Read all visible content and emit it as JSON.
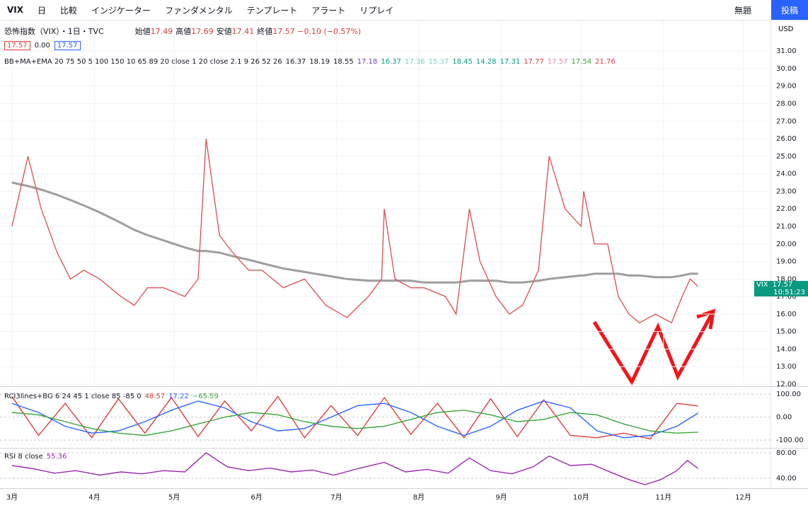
{
  "toolbar": {
    "symbol": "VIX",
    "interval": "日",
    "items": [
      "比較",
      "インジケーター",
      "ファンダメンタル",
      "テンプレート",
      "アラート",
      "リプレイ"
    ],
    "layout": "無題",
    "publish": "投稿",
    "currency": "USD"
  },
  "header": {
    "name": "恐怖指数（VIX）・1日・TVC",
    "ohlc": [
      {
        "label": "始値",
        "value": "17.49"
      },
      {
        "label": "高値",
        "value": "17.69"
      },
      {
        "label": "安値",
        "value": "17.41"
      },
      {
        "label": "終値",
        "value": "17.57"
      }
    ],
    "change": "−0.10 (−0.57%)",
    "boxes": [
      "17.57",
      "0.00",
      "17.57"
    ],
    "price_tag": [
      "VIX",
      "17.57",
      "10:51:23"
    ]
  },
  "legends": [
    {
      "title": "BB+MA+EMA 20 75 50 5 100 150 10 65 89 20 close 1 20 close 2.1 9 26 52 26",
      "values": [
        {
          "text": "16.37",
          "color": "#131722"
        },
        {
          "text": "18.19",
          "color": "#131722"
        },
        {
          "text": "18.55",
          "color": "#131722"
        },
        {
          "text": "17.18",
          "color": "#7b3fb5"
        },
        {
          "text": "16.37",
          "color": "#089981"
        },
        {
          "text": "17.36",
          "color": "#7fcfc4"
        },
        {
          "text": "15.37",
          "color": "#7fcfc4"
        },
        {
          "text": "18.45",
          "color": "#089981"
        },
        {
          "text": "14.28",
          "color": "#089981"
        },
        {
          "text": "17.31",
          "color": "#089981"
        },
        {
          "text": "17.77",
          "color": "#e03c3c"
        },
        {
          "text": "17.57",
          "color": "#f08aa8"
        },
        {
          "text": "17.54",
          "color": "#3aa53a"
        },
        {
          "text": "21.76",
          "color": "#e03c3c"
        }
      ]
    },
    {
      "title": "RCI3lines+BG 6 24 45 1 close 85 -85 0",
      "values": [
        {
          "text": "48.57",
          "color": "#e03c3c"
        },
        {
          "text": "17.22",
          "color": "#2962ff"
        },
        {
          "text": "−65.59",
          "color": "#3aa53a"
        }
      ]
    },
    {
      "title": "RSI 8 close",
      "values": [
        {
          "text": "55.36",
          "color": "#9c27b0"
        }
      ]
    }
  ],
  "chart_data": [
    {
      "type": "line",
      "x": [
        0,
        6,
        11,
        17,
        22,
        27,
        33,
        41,
        46,
        51,
        57,
        65,
        70,
        73,
        78,
        83,
        89,
        94,
        102,
        110,
        118,
        126,
        134,
        139,
        140,
        144,
        150,
        155,
        163,
        167,
        172,
        176,
        182,
        187,
        192,
        198,
        202,
        208,
        214,
        215,
        219,
        224,
        228,
        232,
        236,
        242,
        248,
        252,
        255,
        258
      ],
      "series": [
        {
          "color": "#9e9e9e",
          "values": [
            23.5,
            23.3,
            23.1,
            22.8,
            22.5,
            22.2,
            21.8,
            21.2,
            20.8,
            20.5,
            20.2,
            19.8,
            19.6,
            19.6,
            19.5,
            19.3,
            19.1,
            18.9,
            18.6,
            18.4,
            18.2,
            18.0,
            17.9,
            17.9,
            17.9,
            17.9,
            17.9,
            17.8,
            17.8,
            17.8,
            17.9,
            17.9,
            17.9,
            17.8,
            17.8,
            17.9,
            18.0,
            18.1,
            18.2,
            18.2,
            18.3,
            18.3,
            18.3,
            18.2,
            18.2,
            18.1,
            18.1,
            18.2,
            18.3,
            18.3
          ]
        },
        {
          "color": "#e0565b",
          "values": [
            21,
            25,
            22,
            19.5,
            18,
            18.5,
            18,
            17,
            16.5,
            17.5,
            17.5,
            17,
            18,
            26,
            20.5,
            19.5,
            18.5,
            18.5,
            17.5,
            18,
            16.5,
            15.8,
            17,
            18,
            22,
            18,
            17.5,
            17.5,
            17,
            16,
            22,
            19,
            17,
            16,
            16.5,
            18.5,
            25,
            22,
            21,
            23,
            20,
            20,
            17,
            16,
            15.5,
            16,
            15.5,
            17,
            18,
            17.57
          ]
        }
      ],
      "xlim": [
        -4.5,
        285.5
      ],
      "xticks": [
        {
          "value": 0,
          "label": "3月"
        },
        {
          "value": 31,
          "label": "4月"
        },
        {
          "value": 61,
          "label": "5月"
        },
        {
          "value": 92,
          "label": "6月"
        },
        {
          "value": 122,
          "label": "7月"
        },
        {
          "value": 153,
          "label": "8月"
        },
        {
          "value": 184,
          "label": "9月"
        },
        {
          "value": 214,
          "label": "10月"
        },
        {
          "value": 245,
          "label": "11月"
        },
        {
          "value": 275,
          "label": "12月"
        }
      ],
      "ylim": [
        11.88,
        32.74
      ],
      "yticks": [
        {
          "value": 12,
          "label": "12.00"
        },
        {
          "value": 13,
          "label": "13.00"
        },
        {
          "value": 14,
          "label": "14.00"
        },
        {
          "value": 15,
          "label": "15.00"
        },
        {
          "value": 16,
          "label": "16.00"
        },
        {
          "value": 17,
          "label": "17.00"
        },
        {
          "value": 18,
          "label": "18.00"
        },
        {
          "value": 19,
          "label": "19.00"
        },
        {
          "value": 20,
          "label": "20.00"
        },
        {
          "value": 21,
          "label": "21.00"
        },
        {
          "value": 22,
          "label": "22.00"
        },
        {
          "value": 23,
          "label": "23.00"
        },
        {
          "value": 24,
          "label": "24.00"
        },
        {
          "value": 25,
          "label": "25.00"
        },
        {
          "value": 26,
          "label": "26.00"
        },
        {
          "value": 27,
          "label": "27.00"
        },
        {
          "value": 28,
          "label": "28.00"
        },
        {
          "value": 29,
          "label": "29.00"
        },
        {
          "value": 30,
          "label": "30.00"
        },
        {
          "value": 31,
          "label": "31.00"
        }
      ],
      "grid": true
    },
    {
      "type": "line",
      "x": [
        0,
        10,
        20,
        30,
        40,
        50,
        60,
        70,
        80,
        90,
        100,
        110,
        120,
        130,
        140,
        150,
        160,
        170,
        180,
        190,
        200,
        210,
        220,
        230,
        240,
        250,
        258
      ],
      "series": [
        {
          "color": "#e03c3c",
          "values": [
            90,
            -80,
            60,
            -90,
            80,
            -70,
            85,
            -85,
            70,
            -60,
            90,
            -90,
            50,
            -80,
            85,
            -75,
            60,
            -90,
            80,
            -85,
            75,
            -80,
            -90,
            -70,
            -95,
            60,
            48.57
          ]
        },
        {
          "color": "#2962ff",
          "values": [
            60,
            20,
            -40,
            -70,
            -60,
            -20,
            30,
            70,
            40,
            -20,
            -60,
            -50,
            0,
            50,
            60,
            20,
            -40,
            -80,
            -40,
            30,
            70,
            40,
            -60,
            -90,
            -80,
            -40,
            17.22
          ]
        },
        {
          "color": "#3aa53a",
          "values": [
            20,
            10,
            -20,
            -50,
            -70,
            -80,
            -60,
            -30,
            0,
            20,
            10,
            -20,
            -40,
            -50,
            -40,
            -10,
            20,
            30,
            10,
            -20,
            -10,
            20,
            10,
            -30,
            -60,
            -70,
            -65.59
          ]
        }
      ],
      "ylim": [
        -131,
        128
      ],
      "yticks": [
        {
          "value": 100,
          "label": "100.00"
        },
        {
          "value": 0,
          "label": "0.00"
        },
        {
          "value": -100,
          "label": "-100.00"
        }
      ],
      "grid": true
    },
    {
      "type": "line",
      "x": [
        0,
        8,
        16,
        24,
        33,
        41,
        49,
        57,
        65,
        73,
        81,
        89,
        97,
        105,
        113,
        121,
        130,
        140,
        148,
        156,
        164,
        172,
        180,
        188,
        196,
        202,
        210,
        218,
        226,
        232,
        238,
        244,
        250,
        254,
        258
      ],
      "series": [
        {
          "color": "#9c27b0",
          "values": [
            60,
            55,
            48,
            52,
            45,
            50,
            47,
            52,
            50,
            80,
            58,
            52,
            56,
            50,
            53,
            45,
            55,
            65,
            50,
            54,
            48,
            72,
            52,
            47,
            58,
            75,
            60,
            62,
            48,
            38,
            30,
            38,
            52,
            68,
            55.36
          ]
        }
      ],
      "ylim": [
        24.4,
        86.7
      ],
      "yticks": [
        {
          "value": 80,
          "label": "80.00"
        },
        {
          "value": 40,
          "label": "40.00"
        }
      ],
      "grid": true
    }
  ]
}
